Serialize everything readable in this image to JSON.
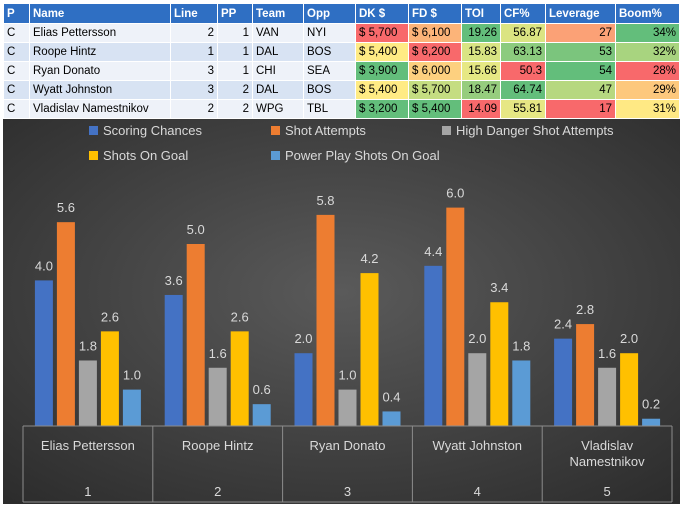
{
  "table": {
    "headers": [
      "P",
      "Name",
      "Line",
      "PP",
      "Team",
      "Opp",
      "DK $",
      "FD $",
      "TOI",
      "CF%",
      "Leverage",
      "Boom%"
    ],
    "rows": [
      {
        "p": "C",
        "name": "Elias Pettersson",
        "line": "2",
        "pp": "1",
        "team": "VAN",
        "opp": "NYI",
        "dk": "$ 5,700",
        "fd": "$ 6,100",
        "toi": "19.26",
        "cf": "56.87",
        "leverage": "27",
        "boom": "34%"
      },
      {
        "p": "C",
        "name": "Roope Hintz",
        "line": "1",
        "pp": "1",
        "team": "DAL",
        "opp": "BOS",
        "dk": "$ 5,400",
        "fd": "$ 6,200",
        "toi": "15.83",
        "cf": "63.13",
        "leverage": "53",
        "boom": "32%"
      },
      {
        "p": "C",
        "name": "Ryan Donato",
        "line": "3",
        "pp": "1",
        "team": "CHI",
        "opp": "SEA",
        "dk": "$ 3,900",
        "fd": "$ 6,000",
        "toi": "15.66",
        "cf": "50.3",
        "leverage": "54",
        "boom": "28%"
      },
      {
        "p": "C",
        "name": "Wyatt Johnston",
        "line": "3",
        "pp": "2",
        "team": "DAL",
        "opp": "BOS",
        "dk": "$ 5,400",
        "fd": "$ 5,700",
        "toi": "18.47",
        "cf": "64.74",
        "leverage": "47",
        "boom": "29%"
      },
      {
        "p": "C",
        "name": "Vladislav Namestnikov",
        "line": "2",
        "pp": "2",
        "team": "WPG",
        "opp": "TBL",
        "dk": "$ 3,200",
        "fd": "$ 5,400",
        "toi": "14.09",
        "cf": "55.81",
        "leverage": "17",
        "boom": "31%"
      }
    ],
    "colors": {
      "header": "#2f6fc3",
      "dk": [
        "#f8696b",
        "#ffeb84",
        "#63be7b",
        "#ffeb84",
        "#63be7b"
      ],
      "fd": [
        "#fcb479",
        "#f8696b",
        "#fdd07f",
        "#c5dd81",
        "#63be7b"
      ],
      "toi": [
        "#63be7b",
        "#d9e483",
        "#e6e884",
        "#96cd7e",
        "#f8696b"
      ],
      "cf": [
        "#dbe482",
        "#8ccb7e",
        "#f8696b",
        "#63be7b",
        "#e6e784"
      ],
      "leverage": [
        "#fba176",
        "#7bc57d",
        "#63be7b",
        "#b6d880",
        "#f8696b"
      ],
      "boom": [
        "#63be7b",
        "#a8d47f",
        "#f8696b",
        "#fdc87d",
        "#ffe984"
      ]
    }
  },
  "chart_data": {
    "type": "bar",
    "categories": [
      {
        "name": [
          "Elias Pettersson"
        ],
        "group": "1"
      },
      {
        "name": [
          "Roope Hintz"
        ],
        "group": "2"
      },
      {
        "name": [
          "Ryan Donato"
        ],
        "group": "3"
      },
      {
        "name": [
          "Wyatt Johnston"
        ],
        "group": "4"
      },
      {
        "name": [
          "Vladislav",
          "Namestnikov"
        ],
        "group": "5"
      }
    ],
    "series": [
      {
        "name": "Scoring Chances",
        "values": [
          4.0,
          3.6,
          2.0,
          4.4,
          2.4
        ],
        "labels": [
          "4.0",
          "3.6",
          "2.0",
          "4.4",
          "2.4"
        ],
        "color": "#4472c4"
      },
      {
        "name": "Shot Attempts",
        "values": [
          5.6,
          5.0,
          5.8,
          6.0,
          2.8
        ],
        "labels": [
          "5.6",
          "5.0",
          "5.8",
          "6.0",
          "2.8"
        ],
        "color": "#ed7d31"
      },
      {
        "name": "High Danger Shot Attempts",
        "values": [
          1.8,
          1.6,
          1.0,
          2.0,
          1.6
        ],
        "labels": [
          "1.8",
          "1.6",
          "1.0",
          "2.0",
          "1.6"
        ],
        "color": "#a5a5a5"
      },
      {
        "name": "Shots On Goal",
        "values": [
          2.6,
          2.6,
          4.2,
          3.4,
          2.0
        ],
        "labels": [
          "2.6",
          "2.6",
          "4.2",
          "3.4",
          "2.0"
        ],
        "color": "#ffc000"
      },
      {
        "name": "Power Play Shots On Goal",
        "values": [
          1.0,
          0.6,
          0.4,
          1.8,
          0.2
        ],
        "labels": [
          "1.0",
          "0.6",
          "0.4",
          "1.8",
          "0.2"
        ],
        "color": "#5b9bd5"
      }
    ],
    "title": "",
    "xlabel": "",
    "ylabel": "",
    "ylim": [
      0,
      6.5
    ],
    "grid": false,
    "legend": "top",
    "background": "#404040"
  }
}
